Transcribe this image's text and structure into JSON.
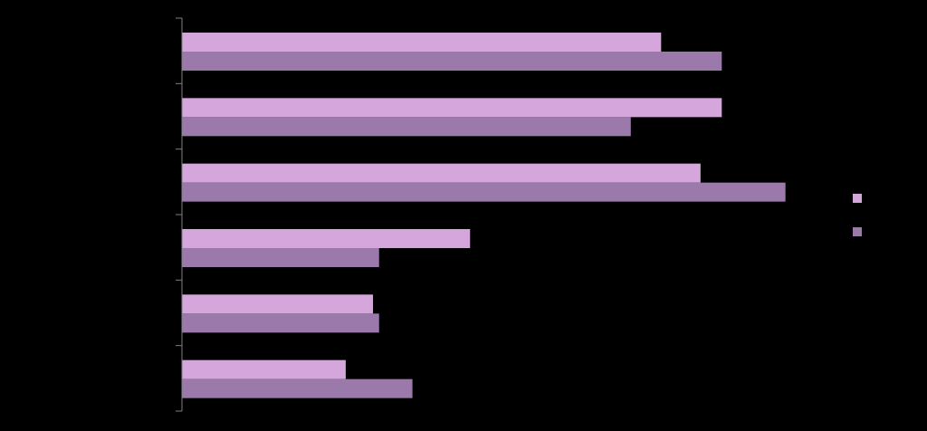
{
  "colors": {
    "background": "#000000",
    "axis": "#7f7f7f"
  },
  "chart_data": {
    "type": "bar",
    "orientation": "horizontal",
    "grid": false,
    "legend_placement": "right",
    "xlim": [
      0,
      100
    ],
    "categories": [
      "",
      "",
      "",
      "",
      "",
      ""
    ],
    "series": [
      {
        "color": "#d4a6dc",
        "values": [
          79,
          89,
          85.5,
          47.5,
          31.5,
          27
        ]
      },
      {
        "color": "#9b79ab",
        "values": [
          89,
          74,
          99.5,
          32.5,
          32.5,
          38
        ]
      }
    ]
  }
}
